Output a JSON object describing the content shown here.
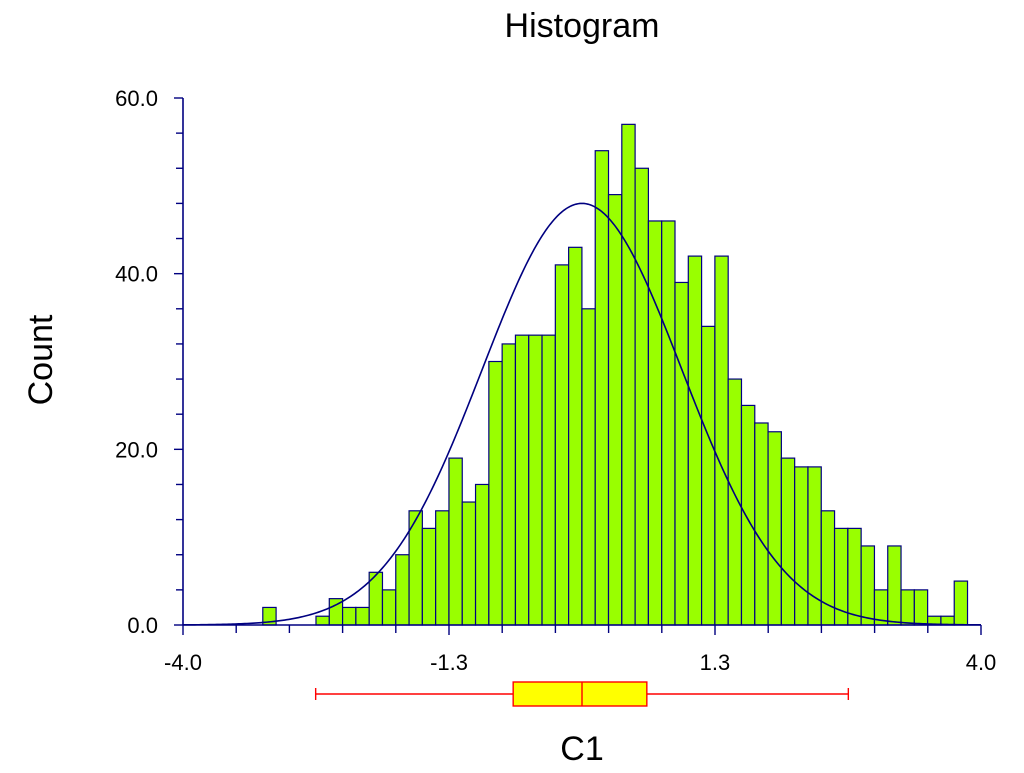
{
  "chart_data": {
    "type": "histogram",
    "title": "Histogram",
    "xlabel": "C1",
    "ylabel": "Count",
    "xlim": [
      -4.0,
      4.0
    ],
    "ylim": [
      0.0,
      60.0
    ],
    "x_ticks": [
      "-4.0",
      "-1.3",
      "1.3",
      "4.0"
    ],
    "x_tick_values": [
      -4.0,
      -1.333,
      1.333,
      4.0
    ],
    "y_ticks": [
      "0.0",
      "20.0",
      "40.0",
      "60.0"
    ],
    "y_tick_values": [
      0,
      20,
      40,
      60
    ],
    "bin_start": -3.2,
    "bin_width": 0.1333,
    "counts": [
      2,
      0,
      0,
      0,
      1,
      3,
      2,
      2,
      6,
      4,
      8,
      13,
      11,
      13,
      19,
      14,
      16,
      30,
      32,
      33,
      33,
      33,
      41,
      43,
      36,
      54,
      49,
      57,
      52,
      46,
      46,
      39,
      42,
      34,
      42,
      28,
      25,
      23,
      22,
      19,
      18,
      18,
      13,
      11,
      11,
      9,
      4,
      9,
      4,
      4,
      1,
      1,
      5
    ],
    "fit_curve": {
      "type": "normal",
      "mean": 0.0,
      "sd": 1.0,
      "peak_count": 48
    },
    "boxplot": {
      "whisker_low": -2.67,
      "q1": -0.69,
      "median": 0.0,
      "q3": 0.65,
      "whisker_high": 2.67
    },
    "grid": false,
    "legend": "none",
    "colors": {
      "bar_fill": "#99ff00",
      "bar_stroke": "#000080",
      "axis": "#000080",
      "curve": "#000080",
      "box_fill": "#ffff00",
      "box_stroke": "#ff0000"
    }
  }
}
